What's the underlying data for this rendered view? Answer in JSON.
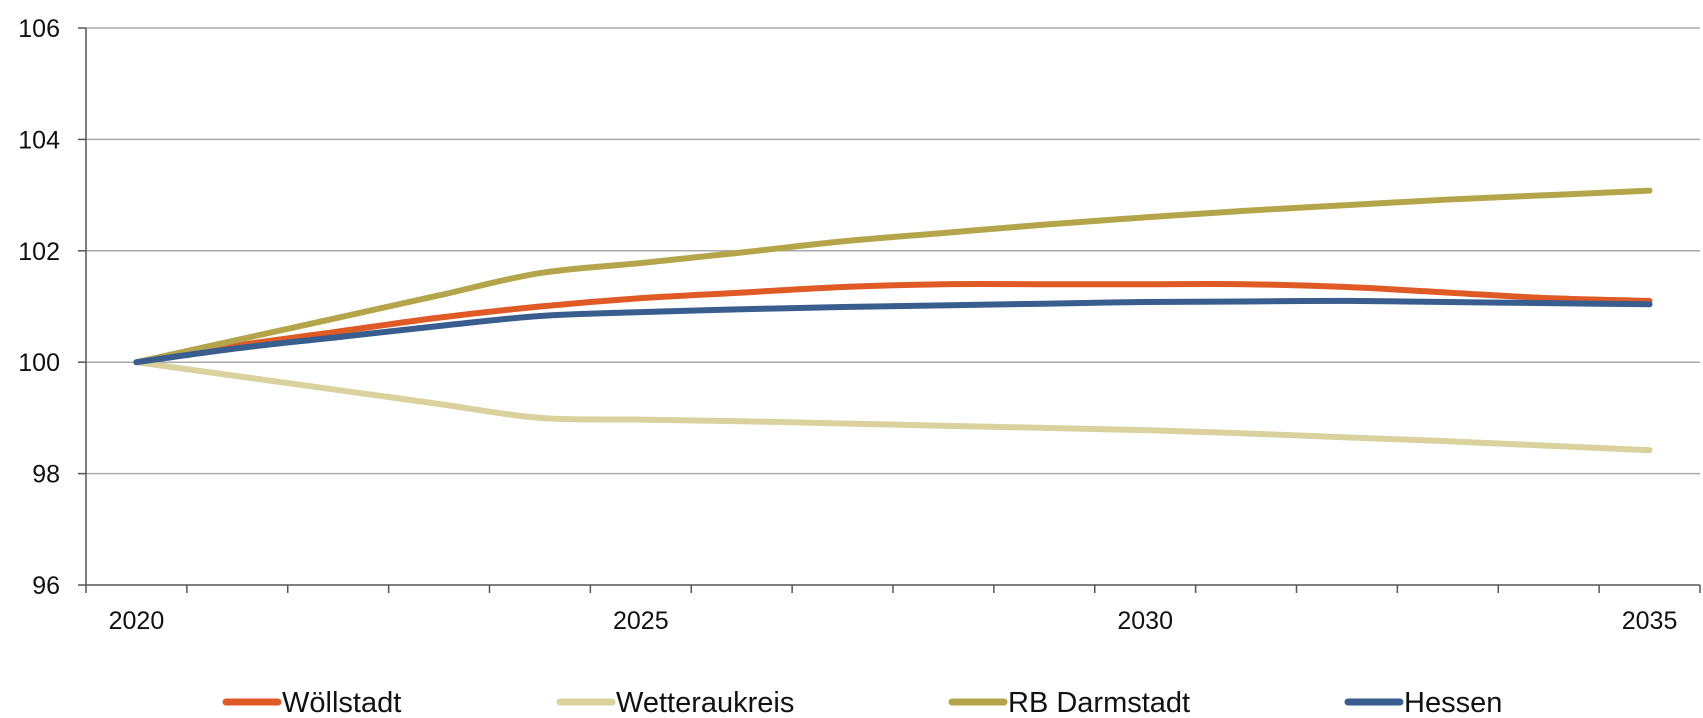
{
  "chart_data": {
    "type": "line",
    "title": "",
    "xlabel": "",
    "ylabel": "",
    "x": [
      2020,
      2021,
      2022,
      2023,
      2024,
      2025,
      2026,
      2027,
      2028,
      2029,
      2030,
      2031,
      2032,
      2033,
      2034,
      2035
    ],
    "xlim": [
      2019.5,
      2035.5
    ],
    "ylim": [
      96,
      106
    ],
    "x_ticks": [
      "2020",
      "2025",
      "2030",
      "2035"
    ],
    "y_ticks": [
      "96",
      "98",
      "100",
      "102",
      "104",
      "106"
    ],
    "grid": "horizontal",
    "legend_position": "bottom",
    "series": [
      {
        "name": "Wöllstadt",
        "color": "#e05a26",
        "values": [
          100.0,
          100.3,
          100.55,
          100.8,
          101.0,
          101.15,
          101.25,
          101.35,
          101.4,
          101.4,
          101.4,
          101.4,
          101.35,
          101.25,
          101.15,
          101.1
        ]
      },
      {
        "name": "Wetteraukreis",
        "color": "#d9d29e",
        "values": [
          100.0,
          99.75,
          99.5,
          99.25,
          99.0,
          98.97,
          98.94,
          98.9,
          98.86,
          98.82,
          98.78,
          98.72,
          98.65,
          98.58,
          98.5,
          98.42
        ]
      },
      {
        "name": "RB Darmstadt",
        "color": "#b5a54a",
        "values": [
          100.0,
          100.4,
          100.8,
          101.2,
          101.6,
          101.78,
          101.97,
          102.17,
          102.32,
          102.47,
          102.6,
          102.72,
          102.82,
          102.92,
          103.0,
          103.08
        ]
      },
      {
        "name": "Hessen",
        "color": "#3a5d8f",
        "values": [
          100.0,
          100.25,
          100.45,
          100.65,
          100.83,
          100.9,
          100.95,
          100.99,
          101.02,
          101.05,
          101.08,
          101.09,
          101.1,
          101.08,
          101.06,
          101.04
        ]
      }
    ]
  },
  "colors": {
    "axis": "#555555",
    "grid": "#aaaaaa"
  }
}
